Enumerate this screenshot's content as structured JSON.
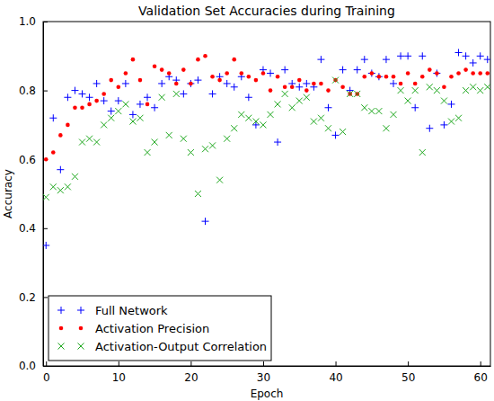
{
  "chart_data": {
    "type": "scatter",
    "title": "Validation Set Accuracies during Training",
    "x_label": "Epoch",
    "y_label": "Accuracy",
    "x": [
      0,
      1,
      2,
      3,
      4,
      5,
      6,
      7,
      8,
      9,
      10,
      11,
      12,
      13,
      14,
      15,
      16,
      17,
      18,
      19,
      20,
      21,
      22,
      23,
      24,
      25,
      26,
      27,
      28,
      29,
      30,
      31,
      32,
      33,
      34,
      35,
      36,
      37,
      38,
      39,
      40,
      41,
      42,
      43,
      44,
      45,
      46,
      47,
      48,
      49,
      50,
      51,
      52,
      53,
      54,
      55,
      56,
      57,
      58,
      59,
      60,
      61
    ],
    "series": [
      {
        "name": "Full Network",
        "color": "#0000ff",
        "marker": "plus",
        "values": [
          0.35,
          0.72,
          0.57,
          0.78,
          0.8,
          0.79,
          0.78,
          0.82,
          0.77,
          0.74,
          0.77,
          0.82,
          0.73,
          0.76,
          0.78,
          0.75,
          0.82,
          0.84,
          0.83,
          0.79,
          0.82,
          0.83,
          0.42,
          0.79,
          0.84,
          0.82,
          0.81,
          0.84,
          0.78,
          0.7,
          0.86,
          0.85,
          0.65,
          0.86,
          0.82,
          0.81,
          0.82,
          0.81,
          0.89,
          0.75,
          0.67,
          0.86,
          0.8,
          0.86,
          0.89,
          0.85,
          0.84,
          0.89,
          0.82,
          0.9,
          0.9,
          0.75,
          0.9,
          0.69,
          0.85,
          0.7,
          0.76,
          0.91,
          0.9,
          0.88,
          0.9,
          0.89
        ]
      },
      {
        "name": "Activation Precision",
        "color": "#ff0000",
        "marker": "point",
        "values": [
          0.6,
          0.62,
          0.67,
          0.7,
          0.75,
          0.75,
          0.76,
          0.77,
          0.79,
          0.83,
          0.81,
          0.85,
          0.89,
          0.83,
          0.76,
          0.87,
          0.86,
          0.85,
          0.82,
          0.86,
          0.82,
          0.89,
          0.9,
          0.84,
          0.83,
          0.85,
          0.89,
          0.85,
          0.84,
          0.83,
          0.85,
          0.8,
          0.84,
          0.81,
          0.81,
          0.83,
          0.8,
          0.82,
          0.82,
          0.8,
          0.83,
          0.81,
          0.79,
          0.79,
          0.84,
          0.85,
          0.84,
          0.84,
          0.84,
          0.82,
          0.85,
          0.82,
          0.84,
          0.86,
          0.85,
          0.81,
          0.84,
          0.85,
          0.86,
          0.85,
          0.85,
          0.85
        ]
      },
      {
        "name": "Activation-Output Correlation",
        "color": "#1fa81f",
        "marker": "x",
        "values": [
          0.49,
          0.52,
          0.51,
          0.52,
          0.55,
          0.65,
          0.66,
          0.65,
          0.7,
          0.72,
          0.74,
          0.76,
          0.71,
          0.72,
          0.62,
          0.65,
          0.78,
          0.67,
          0.79,
          0.66,
          0.62,
          0.5,
          0.63,
          0.64,
          0.54,
          0.66,
          0.69,
          0.73,
          0.72,
          0.71,
          0.7,
          0.73,
          0.76,
          0.79,
          0.75,
          0.77,
          0.78,
          0.71,
          0.72,
          0.69,
          0.83,
          0.68,
          0.79,
          0.79,
          0.75,
          0.74,
          0.74,
          0.69,
          0.73,
          0.8,
          0.77,
          0.8,
          0.62,
          0.81,
          0.8,
          0.77,
          0.71,
          0.72,
          0.8,
          0.81,
          0.8,
          0.81
        ]
      }
    ],
    "xlim": [
      -0.4,
      61.4
    ],
    "ylim": [
      0,
      1.0
    ],
    "xticks": [
      0,
      10,
      20,
      30,
      40,
      50,
      60
    ],
    "yticks": [
      {
        "value": 0,
        "label": "0.0"
      },
      {
        "value": 0.2,
        "label": "0.2"
      },
      {
        "value": 0.4,
        "label": "0.4"
      },
      {
        "value": 0.6,
        "label": "0.6"
      },
      {
        "value": 0.8,
        "label": "0.8"
      },
      {
        "value": 1.0,
        "label": "1.0"
      }
    ],
    "legend": "lower left",
    "grid": false
  }
}
